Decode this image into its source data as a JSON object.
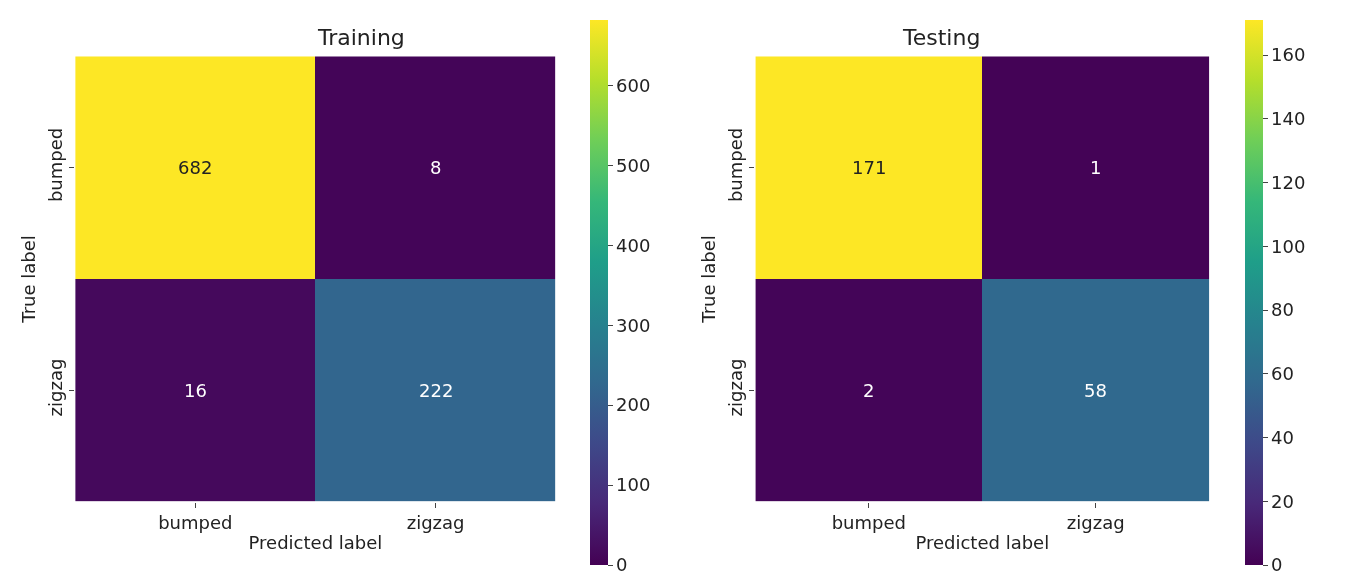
{
  "chart_data": [
    {
      "type": "heatmap",
      "title": "Training",
      "xlabel": "Predicted label",
      "ylabel": "True label",
      "categories": [
        "bumped",
        "zigzag"
      ],
      "y_categories": [
        "bumped",
        "zigzag"
      ],
      "cells": [
        [
          682,
          8
        ],
        [
          16,
          222
        ]
      ],
      "data_labels": true,
      "clim": [
        0,
        682
      ],
      "cticks": [
        0,
        100,
        200,
        300,
        400,
        500,
        600
      ]
    },
    {
      "type": "heatmap",
      "title": "Testing",
      "xlabel": "Predicted label",
      "ylabel": "True label",
      "categories": [
        "bumped",
        "zigzag"
      ],
      "y_categories": [
        "bumped",
        "zigzag"
      ],
      "cells": [
        [
          171,
          1
        ],
        [
          2,
          58
        ]
      ],
      "data_labels": true,
      "clim": [
        0,
        171
      ],
      "cticks": [
        0,
        20,
        40,
        60,
        80,
        100,
        120,
        140,
        160
      ]
    }
  ]
}
